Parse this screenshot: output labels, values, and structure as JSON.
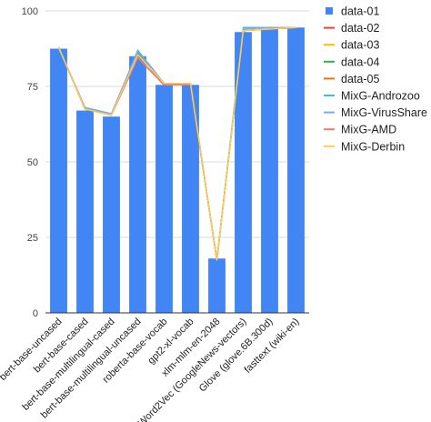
{
  "chart_data": {
    "type": "bar",
    "categories": [
      "bert-base-uncased",
      "bert-base-cased",
      "bert-base-multilingual-cased",
      "bert-base-multilingual-uncased",
      "roberta-base-vocab",
      "gpt2-xl-vocab",
      "xlm-mlm-en-2048",
      "Word2Vec (GoogleNews-vectors)",
      "Glove (glove.6B.300d)",
      "fasttext (wiki-en)"
    ],
    "ylim": [
      0,
      100
    ],
    "yticks": [
      0,
      25,
      50,
      75,
      100
    ],
    "grid": true,
    "legend_position": "right",
    "bars": [
      {
        "name": "data-01",
        "color": "#4285f4",
        "values": [
          87.5,
          67,
          65,
          85,
          75.5,
          75.5,
          18,
          93,
          94,
          94.5
        ]
      }
    ],
    "series": [
      {
        "name": "data-02",
        "color": "#ea4335",
        "values": [
          88,
          67.5,
          65.5,
          84.5,
          75.5,
          75.5,
          17.5,
          93.5,
          94,
          94.5
        ]
      },
      {
        "name": "data-03",
        "color": "#fbbc04",
        "values": [
          88,
          67.5,
          65.5,
          85.5,
          76,
          76,
          17.5,
          93.5,
          94,
          94.5
        ]
      },
      {
        "name": "data-04",
        "color": "#34a853",
        "values": [
          88,
          67.5,
          65.5,
          86,
          75.5,
          75.5,
          17.5,
          93.5,
          94,
          94.5
        ]
      },
      {
        "name": "data-05",
        "color": "#ff6d01",
        "values": [
          88,
          67.5,
          65.5,
          84.5,
          75.5,
          75.5,
          17.5,
          93.5,
          94,
          94.5
        ]
      },
      {
        "name": "MixG-Androzoo",
        "color": "#46bdc6",
        "values": [
          87.5,
          68,
          65.5,
          87,
          76,
          76,
          17.5,
          94.5,
          94.5,
          94.5
        ]
      },
      {
        "name": "MixG-VirusShare",
        "color": "#7baaf7",
        "values": [
          88,
          68,
          66,
          86.5,
          76,
          76,
          17.5,
          94,
          94.5,
          94.5
        ]
      },
      {
        "name": "MixG-AMD",
        "color": "#f07b72",
        "values": [
          88,
          67.5,
          65.5,
          84.5,
          75.5,
          75.5,
          17.5,
          93.5,
          94,
          94.5
        ]
      },
      {
        "name": "MixG-Derbin",
        "color": "#fcd04f",
        "values": [
          88,
          67.5,
          65.5,
          85.5,
          76,
          76,
          17.5,
          93.5,
          94,
          94.5
        ]
      }
    ]
  }
}
